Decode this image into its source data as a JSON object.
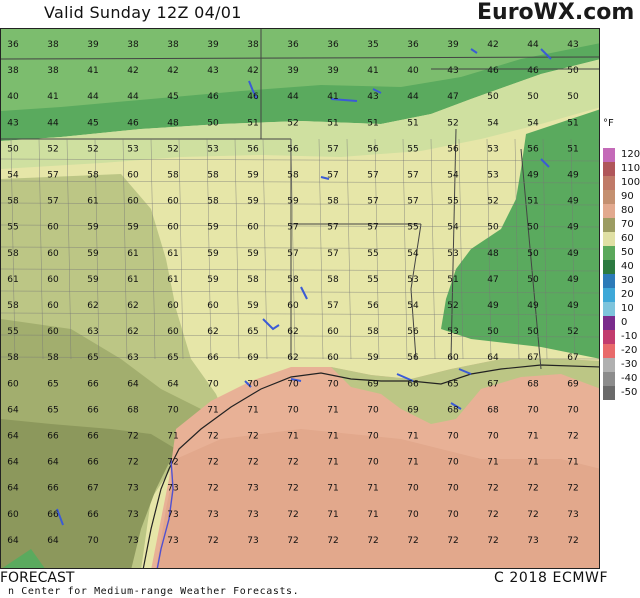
{
  "header": {
    "title": "Valid Sunday 12Z 04/01",
    "brand": "EuroWX.com"
  },
  "footer": {
    "left": "FORECAST",
    "sub": "n Center for Medium-range Weather Forecasts.",
    "right": "C 2018 ECMWF"
  },
  "legend": {
    "unit": "°F",
    "items": [
      {
        "label": "120",
        "color": "#c46ab8"
      },
      {
        "label": "110",
        "color": "#b0565a"
      },
      {
        "label": "100",
        "color": "#c07a68"
      },
      {
        "label": "90",
        "color": "#c49070"
      },
      {
        "label": "80",
        "color": "#e2a98e"
      },
      {
        "label": "70",
        "color": "#9c9c62"
      },
      {
        "label": "60",
        "color": "#e0e0a4"
      },
      {
        "label": "50",
        "color": "#5aa85a"
      },
      {
        "label": "40",
        "color": "#2c7a40"
      },
      {
        "label": "30",
        "color": "#2c7ab8"
      },
      {
        "label": "20",
        "color": "#3ea8d8"
      },
      {
        "label": "10",
        "color": "#7ec4dc"
      },
      {
        "label": "0",
        "color": "#7a2c8c"
      },
      {
        "label": "-10",
        "color": "#c23c6e"
      },
      {
        "label": "-20",
        "color": "#e86a6a"
      },
      {
        "label": "-30",
        "color": "#b0b0b0"
      },
      {
        "label": "-40",
        "color": "#8c8c8c"
      },
      {
        "label": "-50",
        "color": "#6a6a6a"
      }
    ]
  },
  "zone_colors": {
    "c40": "#5aaa5e",
    "c45": "#7cbd6e",
    "c50": "#cfe0a0",
    "c55": "#e6e6a8",
    "c60": "#bcc685",
    "c65": "#a2ae6e",
    "c70": "#8c985c",
    "c70w": "#e8b196",
    "c75w": "#e2a88c"
  },
  "grid": [
    [
      36,
      38,
      39,
      38,
      38,
      39,
      38,
      36,
      36,
      35,
      36,
      39,
      42,
      44,
      43
    ],
    [
      38,
      38,
      41,
      42,
      42,
      43,
      42,
      39,
      39,
      41,
      40,
      43,
      46,
      46,
      50
    ],
    [
      40,
      41,
      44,
      44,
      45,
      46,
      46,
      44,
      41,
      43,
      44,
      47,
      50,
      50,
      50
    ],
    [
      43,
      44,
      45,
      46,
      48,
      50,
      51,
      52,
      51,
      51,
      51,
      52,
      54,
      54,
      51
    ],
    [
      50,
      52,
      52,
      53,
      52,
      53,
      56,
      56,
      57,
      56,
      55,
      56,
      53,
      56,
      51
    ],
    [
      54,
      57,
      58,
      60,
      58,
      58,
      59,
      58,
      57,
      57,
      57,
      54,
      53,
      49,
      49
    ],
    [
      58,
      57,
      61,
      60,
      60,
      58,
      59,
      59,
      58,
      57,
      57,
      55,
      52,
      51,
      49
    ],
    [
      55,
      60,
      59,
      59,
      60,
      59,
      60,
      57,
      57,
      57,
      55,
      54,
      50,
      50,
      49
    ],
    [
      58,
      60,
      59,
      61,
      61,
      59,
      59,
      57,
      57,
      55,
      54,
      53,
      48,
      50,
      49
    ],
    [
      61,
      60,
      59,
      61,
      61,
      59,
      58,
      58,
      58,
      55,
      53,
      51,
      47,
      50,
      49
    ],
    [
      58,
      60,
      62,
      62,
      60,
      60,
      59,
      60,
      57,
      56,
      54,
      52,
      49,
      49,
      49
    ],
    [
      55,
      60,
      63,
      62,
      60,
      62,
      65,
      62,
      60,
      58,
      56,
      53,
      50,
      50,
      52
    ],
    [
      58,
      58,
      65,
      63,
      65,
      66,
      69,
      62,
      60,
      59,
      56,
      60,
      64,
      67,
      67
    ],
    [
      60,
      65,
      66,
      64,
      64,
      70,
      70,
      70,
      70,
      69,
      66,
      65,
      67,
      68,
      69
    ],
    [
      64,
      65,
      66,
      68,
      70,
      71,
      71,
      70,
      71,
      70,
      69,
      68,
      68,
      70,
      70
    ],
    [
      64,
      66,
      66,
      72,
      71,
      72,
      72,
      71,
      71,
      70,
      71,
      70,
      70,
      71,
      72
    ],
    [
      64,
      64,
      66,
      72,
      72,
      72,
      72,
      72,
      71,
      70,
      71,
      70,
      71,
      71,
      71
    ],
    [
      64,
      66,
      67,
      73,
      73,
      72,
      73,
      72,
      71,
      71,
      70,
      70,
      72,
      72,
      72
    ],
    [
      60,
      66,
      66,
      73,
      73,
      73,
      73,
      72,
      71,
      71,
      70,
      70,
      72,
      72,
      73
    ],
    [
      64,
      64,
      70,
      73,
      73,
      72,
      73,
      72,
      72,
      72,
      72,
      72,
      72,
      73,
      72
    ]
  ],
  "rows_shown": [
    "row1",
    "row2"
  ]
}
